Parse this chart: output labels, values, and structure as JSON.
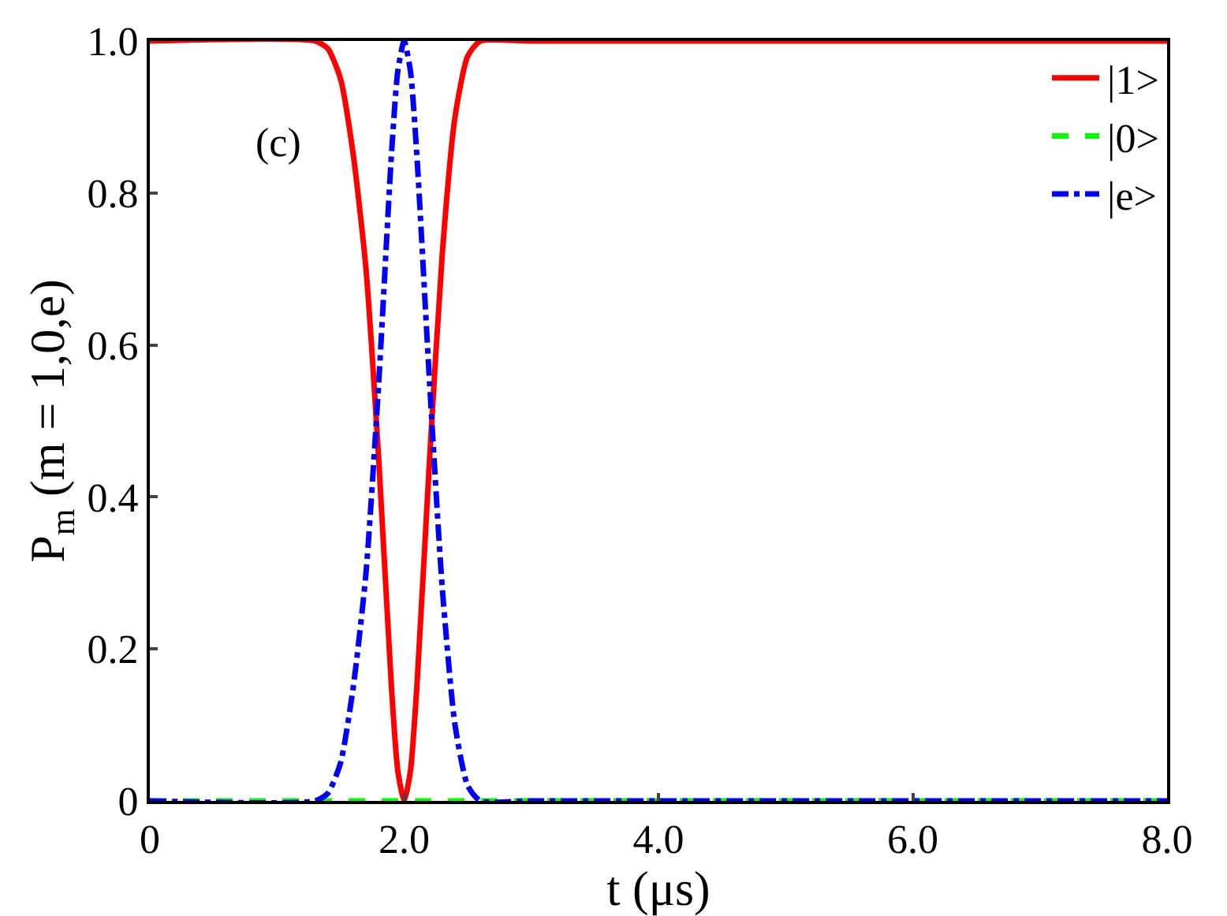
{
  "chart_data": {
    "type": "line",
    "xlabel": "t (μs)",
    "ylabel": "P$_{m}$ (m = 1,0,e)",
    "annotations": [
      "(c)"
    ],
    "x": [
      0,
      1.3,
      1.4,
      1.5,
      1.6,
      1.7,
      1.8,
      1.9,
      1.95,
      2.0,
      2.05,
      2.1,
      2.2,
      2.3,
      2.4,
      2.5,
      2.6,
      3.0,
      8.0
    ],
    "series": [
      {
        "name": "|1>",
        "color": "#ff0000",
        "line_style": "solid",
        "values": [
          1,
          1,
          0.99,
          0.95,
          0.85,
          0.7,
          0.45,
          0.15,
          0.04,
          0,
          0.04,
          0.15,
          0.45,
          0.72,
          0.9,
          0.98,
          1,
          1,
          1
        ]
      },
      {
        "name": "|0>",
        "color": "#00ff00",
        "line_style": "dashed",
        "values": [
          0,
          0,
          0,
          0,
          0,
          0,
          0,
          0,
          0,
          0,
          0,
          0,
          0,
          0,
          0,
          0,
          0,
          0,
          0
        ]
      },
      {
        "name": "|e>",
        "color": "#0000ff",
        "line_style": "dashdot",
        "values": [
          0,
          0,
          0.01,
          0.05,
          0.15,
          0.3,
          0.55,
          0.85,
          0.96,
          1,
          0.96,
          0.85,
          0.55,
          0.28,
          0.1,
          0.02,
          0,
          0,
          0
        ]
      }
    ],
    "xlim": [
      0,
      8
    ],
    "ylim": [
      0,
      1
    ],
    "xticks": [
      0,
      {
        "value": 2,
        "label": "2.0"
      },
      {
        "value": 4,
        "label": "4.0"
      },
      {
        "value": 6,
        "label": "6.0"
      },
      {
        "value": 8,
        "label": "8.0"
      }
    ],
    "yticks": [
      0,
      0.2,
      0.4,
      0.6,
      0.8,
      {
        "value": 1,
        "label": "1.0"
      }
    ],
    "legend": "top right"
  }
}
